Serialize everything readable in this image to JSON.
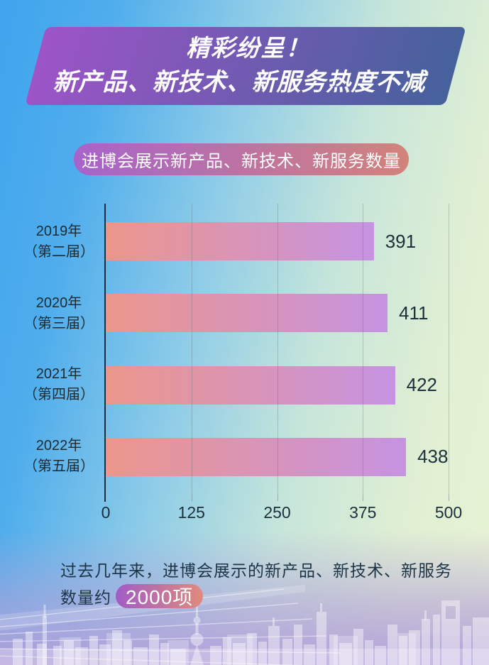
{
  "banner": {
    "line1": "精彩纷呈！",
    "line2": "新产品、新技术、新服务热度不减"
  },
  "badge": {
    "label": "进博会展示新产品、新技术、新服务数量"
  },
  "chart_data": {
    "type": "bar",
    "orientation": "horizontal",
    "title": "进博会展示新产品、新技术、新服务数量",
    "rows": [
      {
        "year": "2019年",
        "session": "（第二届）",
        "value": 391
      },
      {
        "year": "2020年",
        "session": "（第三届）",
        "value": 411
      },
      {
        "year": "2021年",
        "session": "（第四届）",
        "value": 422
      },
      {
        "year": "2022年",
        "session": "（第五届）",
        "value": 438
      }
    ],
    "categories": [
      "2019年（第二届）",
      "2020年（第三届）",
      "2021年（第四届）",
      "2022年（第五届）"
    ],
    "values": [
      391,
      411,
      422,
      438
    ],
    "xlim": [
      0,
      500
    ],
    "xticks": [
      0,
      125,
      250,
      375,
      500
    ],
    "grid": true,
    "legend": false
  },
  "footer": {
    "line1": "过去几年来，进博会展示的新产品、新技术、新服务",
    "line2_prefix": "数量约",
    "highlight": "2000项"
  },
  "colors": {
    "banner_gradient": [
      "#9d54c7",
      "#45619c"
    ],
    "badge_gradient": [
      "#a763cb",
      "#d2837a"
    ],
    "bar_gradient": [
      "#ec968b",
      "#c693e2"
    ],
    "highlight_pill_gradient": [
      "#a15cc6",
      "#e08a7c"
    ],
    "text_dark": "#1b303c",
    "axis_color": "#1d2a36",
    "background_top_left": "#3fa4ee",
    "background_right": "#e9f3d4",
    "background_bottom": "#b2a0d9"
  }
}
